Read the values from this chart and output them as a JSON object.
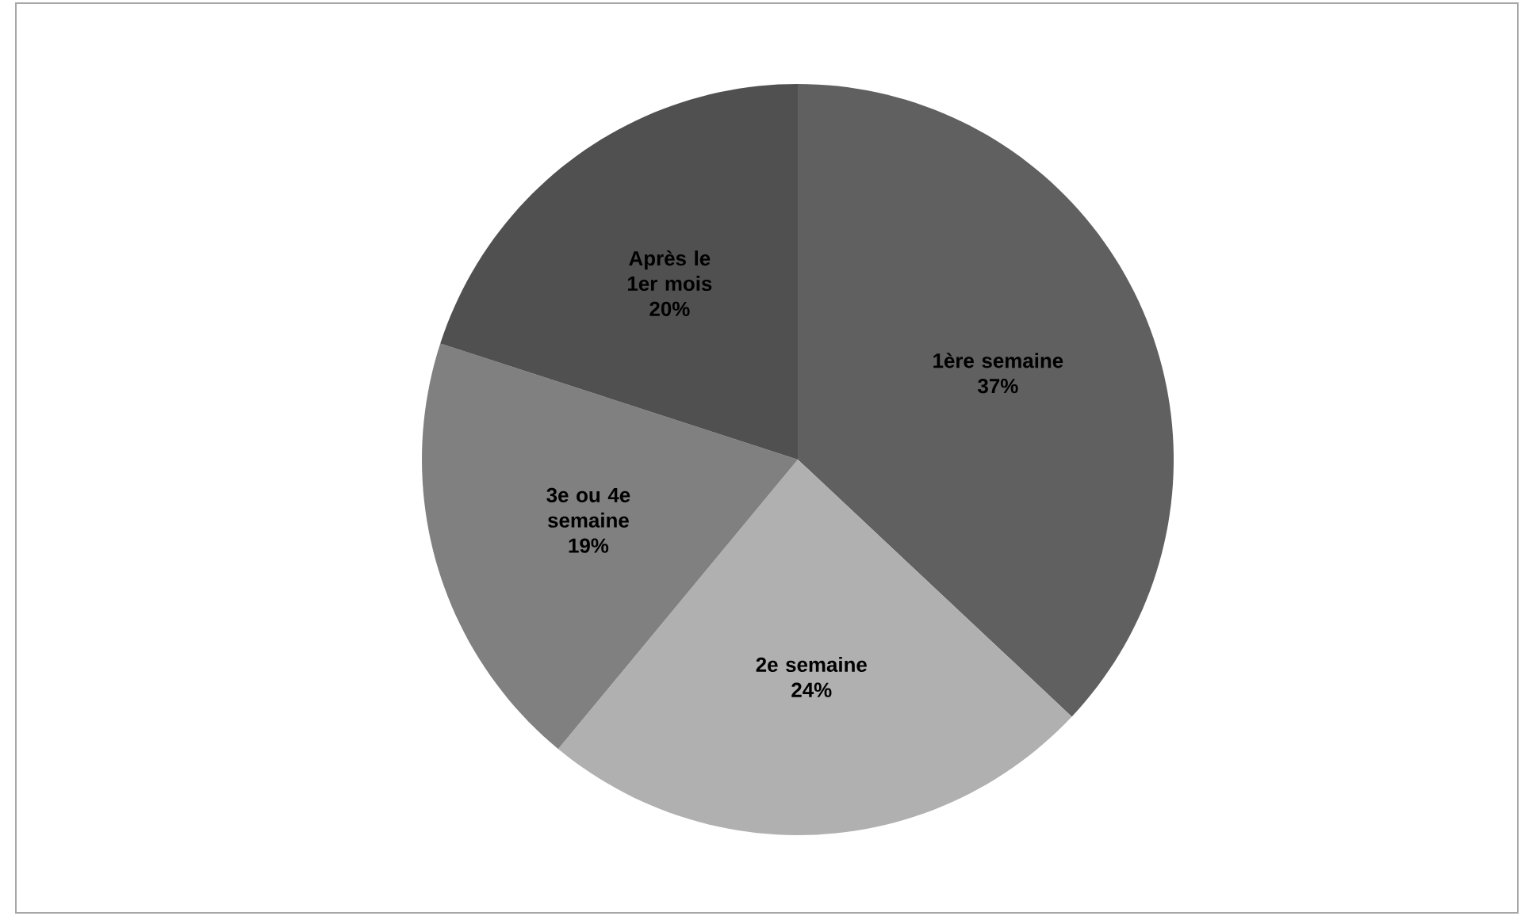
{
  "chart_data": {
    "type": "pie",
    "categories": [
      "1ère semaine",
      "2e semaine",
      "3e ou 4e semaine",
      "Après le 1er mois"
    ],
    "values": [
      37,
      24,
      19,
      20
    ],
    "value_labels": [
      "37%",
      "24%",
      "19%",
      "20%"
    ],
    "colors": [
      "#606060",
      "#b0b0b0",
      "#808080",
      "#505050"
    ]
  }
}
